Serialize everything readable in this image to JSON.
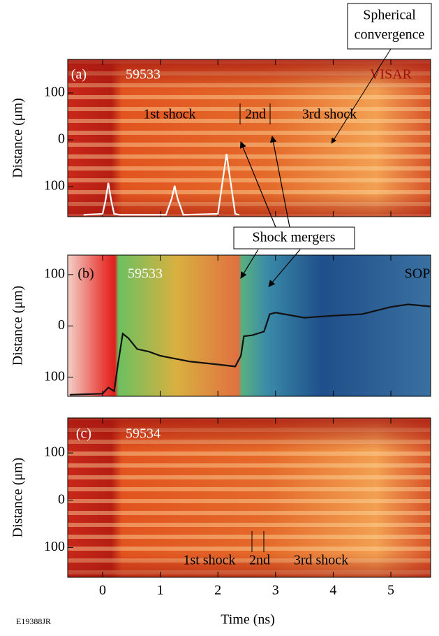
{
  "chart_data": [
    {
      "type": "image",
      "panel": "(a)",
      "shot": "59533",
      "diagnostic": "VISAR",
      "ylabel": "Distance (μm)",
      "xlim": [
        -0.605,
        5.69
      ],
      "xticks": [
        0,
        1,
        2,
        3,
        4,
        5
      ],
      "ylim": [
        -164,
        171.6
      ],
      "yticks": [
        {
          "value": 100,
          "label": "100"
        },
        0,
        {
          "value": -100,
          "label": "100"
        }
      ],
      "annotations": [
        "1st shock",
        "2nd",
        "3rd shock"
      ],
      "series": [
        {
          "color": "#ffffff",
          "x": [
            -0.33,
            0.0,
            0.05,
            0.1,
            0.15,
            0.2,
            0.3,
            1.1,
            1.2,
            1.25,
            1.3,
            1.4,
            2.0,
            2.08,
            2.15,
            2.22,
            2.3,
            2.37
          ],
          "values": [
            -160,
            -158,
            -130,
            -92,
            -130,
            -158,
            -160,
            -160,
            -125,
            -98,
            -125,
            -160,
            -158,
            -90,
            -30,
            -90,
            -158,
            -160
          ]
        }
      ]
    },
    {
      "type": "image",
      "panel": "(b)",
      "shot": "59533",
      "diagnostic": "SOP",
      "ylabel": "Distance (μm)",
      "xlim": [
        -0.605,
        5.69
      ],
      "xticks": [
        0,
        1,
        2,
        3,
        4,
        5
      ],
      "ylim": [
        -137,
        138
      ],
      "yticks": [
        {
          "value": 100,
          "label": "100"
        },
        0,
        {
          "value": -100,
          "label": "100"
        }
      ],
      "annotations": [],
      "series": [
        {
          "color": "#111111",
          "x": [
            -0.57,
            0.0,
            0.1,
            0.2,
            0.27,
            0.35,
            0.45,
            0.6,
            0.8,
            1.0,
            1.5,
            2.0,
            2.3,
            2.4,
            2.45,
            2.6,
            2.8,
            2.9,
            3.0,
            3.5,
            4.0,
            4.5,
            5.0,
            5.3,
            5.69
          ],
          "values": [
            -134,
            -132,
            -120,
            -127,
            -72,
            -15,
            -24,
            -45,
            -50,
            -58,
            -69,
            -75,
            -79,
            -58,
            -20,
            -18,
            -11,
            23,
            26,
            16,
            20,
            23,
            37,
            42,
            38
          ]
        }
      ]
    },
    {
      "type": "image",
      "panel": "(c)",
      "shot": "59534",
      "ylabel": "Distance (μm)",
      "xlabel": "Time (ns)",
      "xlim": [
        -0.605,
        5.69
      ],
      "xticks": [
        0,
        1,
        2,
        3,
        4,
        5
      ],
      "ylim": [
        -163,
        174
      ],
      "yticks": [
        {
          "value": 100,
          "label": "100"
        },
        0,
        {
          "value": -100,
          "label": "100"
        }
      ],
      "annotations": [
        "1st shock",
        "2nd",
        "3rd shock"
      ],
      "series": []
    }
  ],
  "figure": {
    "convergence": [
      "Spherical",
      "convergence"
    ],
    "mergers": "Shock mergers",
    "code": "E19388JR"
  }
}
